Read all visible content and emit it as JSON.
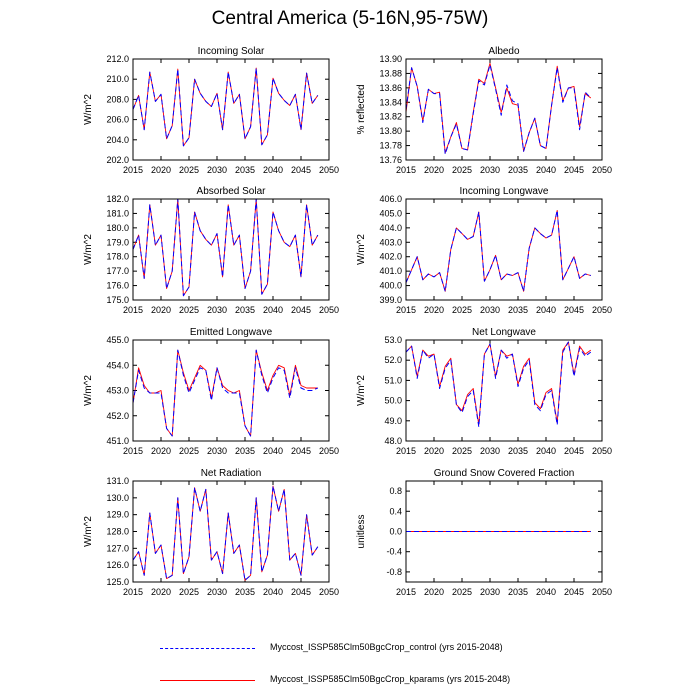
{
  "title": "Central America (5-16N,95-75W)",
  "colors": {
    "control": "#0000ff",
    "kparams": "#ff0000",
    "axis": "#000000"
  },
  "legend": [
    {
      "label": "Myccost_ISSP585Clm50BgcCrop_control (yrs 2015-2048)",
      "color": "#0000ff",
      "style": "dashed"
    },
    {
      "label": "Myccost_ISSP585Clm50BgcCrop_kparams (yrs 2015-2048)",
      "color": "#ff0000",
      "style": "solid"
    }
  ],
  "chart_data": [
    {
      "type": "line",
      "title": "Incoming Solar",
      "ylabel": "W/m^2",
      "xlim": [
        2015,
        2050
      ],
      "xticks": [
        "2015",
        "2020",
        "2025",
        "2030",
        "2035",
        "2040",
        "2045",
        "2050"
      ],
      "ylim": [
        202,
        212
      ],
      "yticks": [
        "202.0",
        "204.0",
        "206.0",
        "208.0",
        "210.0",
        "212.0"
      ],
      "x": [
        2015,
        2016,
        2017,
        2018,
        2019,
        2020,
        2021,
        2022,
        2023,
        2024,
        2025,
        2026,
        2027,
        2028,
        2029,
        2030,
        2031,
        2032,
        2033,
        2034,
        2035,
        2036,
        2037,
        2038,
        2039,
        2040,
        2041,
        2042,
        2043,
        2044,
        2045,
        2046,
        2047,
        2048
      ],
      "series": [
        {
          "name": "control",
          "values": [
            207.0,
            208.4,
            205.0,
            210.7,
            207.8,
            208.5,
            204.1,
            205.4,
            211.0,
            203.4,
            204.2,
            210.0,
            208.6,
            207.8,
            207.3,
            208.6,
            205.0,
            210.7,
            207.6,
            208.5,
            204.1,
            205.3,
            211.1,
            203.5,
            204.5,
            210.1,
            208.6,
            207.9,
            207.4,
            208.5,
            205.0,
            210.6,
            207.6,
            208.4
          ]
        },
        {
          "name": "kparams",
          "values": [
            207.0,
            208.4,
            205.0,
            210.7,
            207.8,
            208.5,
            204.1,
            205.4,
            211.0,
            203.4,
            204.2,
            210.0,
            208.6,
            207.8,
            207.3,
            208.6,
            205.0,
            210.7,
            207.6,
            208.5,
            204.1,
            205.3,
            211.1,
            203.5,
            204.5,
            210.1,
            208.6,
            207.9,
            207.4,
            208.5,
            205.0,
            210.6,
            207.6,
            208.4
          ]
        }
      ]
    },
    {
      "type": "line",
      "title": "Albedo",
      "ylabel": "% reflected",
      "xlim": [
        2015,
        2050
      ],
      "xticks": [
        "2015",
        "2020",
        "2025",
        "2030",
        "2035",
        "2040",
        "2045",
        "2050"
      ],
      "ylim": [
        13.76,
        13.9
      ],
      "yticks": [
        "13.76",
        "13.78",
        "13.80",
        "13.82",
        "13.84",
        "13.86",
        "13.88",
        "13.90"
      ],
      "x": [
        2015,
        2016,
        2017,
        2018,
        2019,
        2020,
        2021,
        2022,
        2023,
        2024,
        2025,
        2026,
        2027,
        2028,
        2029,
        2030,
        2031,
        2032,
        2033,
        2034,
        2035,
        2036,
        2037,
        2038,
        2039,
        2040,
        2041,
        2042,
        2043,
        2044,
        2045,
        2046,
        2047,
        2048
      ],
      "series": [
        {
          "name": "control",
          "values": [
            13.83,
            13.888,
            13.862,
            13.812,
            13.858,
            13.852,
            13.852,
            13.768,
            13.792,
            13.81,
            13.776,
            13.774,
            13.824,
            13.87,
            13.864,
            13.892,
            13.858,
            13.822,
            13.864,
            13.842,
            13.838,
            13.772,
            13.798,
            13.818,
            13.78,
            13.776,
            13.836,
            13.888,
            13.84,
            13.86,
            13.86,
            13.802,
            13.854,
            13.846
          ]
        },
        {
          "name": "kparams",
          "values": [
            13.826,
            13.888,
            13.862,
            13.814,
            13.858,
            13.852,
            13.854,
            13.77,
            13.792,
            13.812,
            13.776,
            13.774,
            13.826,
            13.872,
            13.866,
            13.894,
            13.86,
            13.826,
            13.86,
            13.838,
            13.836,
            13.772,
            13.798,
            13.818,
            13.78,
            13.776,
            13.836,
            13.89,
            13.842,
            13.86,
            13.862,
            13.806,
            13.852,
            13.846
          ]
        }
      ]
    },
    {
      "type": "line",
      "title": "Absorbed Solar",
      "ylabel": "W/m^2",
      "xlim": [
        2015,
        2050
      ],
      "xticks": [
        "2015",
        "2020",
        "2025",
        "2030",
        "2035",
        "2040",
        "2045",
        "2050"
      ],
      "ylim": [
        175,
        182
      ],
      "yticks": [
        "175.0",
        "176.0",
        "177.0",
        "178.0",
        "179.0",
        "180.0",
        "181.0",
        "182.0"
      ],
      "x": [
        2015,
        2016,
        2017,
        2018,
        2019,
        2020,
        2021,
        2022,
        2023,
        2024,
        2025,
        2026,
        2027,
        2028,
        2029,
        2030,
        2031,
        2032,
        2033,
        2034,
        2035,
        2036,
        2037,
        2038,
        2039,
        2040,
        2041,
        2042,
        2043,
        2044,
        2045,
        2046,
        2047,
        2048
      ],
      "series": [
        {
          "name": "control",
          "values": [
            178.5,
            179.5,
            176.5,
            181.6,
            178.8,
            179.5,
            175.8,
            177.0,
            182.0,
            175.3,
            175.9,
            181.1,
            179.8,
            179.2,
            178.8,
            179.6,
            176.6,
            181.6,
            178.8,
            179.5,
            175.8,
            177.0,
            182.0,
            175.4,
            176.1,
            181.1,
            179.8,
            179.0,
            178.7,
            179.5,
            176.6,
            181.6,
            178.8,
            179.5
          ]
        },
        {
          "name": "kparams",
          "values": [
            178.5,
            179.5,
            176.5,
            181.6,
            178.8,
            179.5,
            175.8,
            177.0,
            182.0,
            175.3,
            175.9,
            181.1,
            179.8,
            179.2,
            178.8,
            179.6,
            176.6,
            181.6,
            178.8,
            179.5,
            175.8,
            177.0,
            182.0,
            175.4,
            176.1,
            181.1,
            179.8,
            179.0,
            178.7,
            179.5,
            176.6,
            181.6,
            178.8,
            179.5
          ]
        }
      ]
    },
    {
      "type": "line",
      "title": "Incoming Longwave",
      "ylabel": "W/m^2",
      "xlim": [
        2015,
        2050
      ],
      "xticks": [
        "2015",
        "2020",
        "2025",
        "2030",
        "2035",
        "2040",
        "2045",
        "2050"
      ],
      "ylim": [
        399,
        406
      ],
      "yticks": [
        "399.0",
        "400.0",
        "401.0",
        "402.0",
        "403.0",
        "404.0",
        "405.0",
        "406.0"
      ],
      "x": [
        2015,
        2016,
        2017,
        2018,
        2019,
        2020,
        2021,
        2022,
        2023,
        2024,
        2025,
        2026,
        2027,
        2028,
        2029,
        2030,
        2031,
        2032,
        2033,
        2034,
        2035,
        2036,
        2037,
        2038,
        2039,
        2040,
        2041,
        2042,
        2043,
        2044,
        2045,
        2046,
        2047,
        2048
      ],
      "series": [
        {
          "name": "control",
          "values": [
            400.2,
            401.1,
            402.0,
            400.4,
            400.8,
            400.6,
            400.9,
            399.6,
            402.5,
            404.0,
            403.6,
            403.2,
            403.4,
            405.1,
            400.3,
            401.1,
            402.1,
            400.4,
            400.8,
            400.7,
            400.9,
            399.6,
            402.6,
            404.0,
            403.6,
            403.3,
            403.5,
            405.2,
            400.4,
            401.2,
            402.0,
            400.5,
            400.8,
            400.7
          ]
        },
        {
          "name": "kparams",
          "values": [
            400.2,
            401.1,
            402.0,
            400.4,
            400.8,
            400.6,
            400.9,
            399.6,
            402.5,
            404.0,
            403.6,
            403.2,
            403.4,
            405.1,
            400.3,
            401.1,
            402.1,
            400.4,
            400.8,
            400.7,
            400.9,
            399.6,
            402.6,
            404.0,
            403.6,
            403.3,
            403.5,
            405.2,
            400.4,
            401.2,
            402.0,
            400.5,
            400.8,
            400.7
          ]
        }
      ]
    },
    {
      "type": "line",
      "title": "Emitted Longwave",
      "ylabel": "W/m^2",
      "xlim": [
        2015,
        2050
      ],
      "xticks": [
        "2015",
        "2020",
        "2025",
        "2030",
        "2035",
        "2040",
        "2045",
        "2050"
      ],
      "ylim": [
        451,
        455
      ],
      "yticks": [
        "451.0",
        "452.0",
        "453.0",
        "454.0",
        "455.0"
      ],
      "x": [
        2015,
        2016,
        2017,
        2018,
        2019,
        2020,
        2021,
        2022,
        2023,
        2024,
        2025,
        2026,
        2027,
        2028,
        2029,
        2030,
        2031,
        2032,
        2033,
        2034,
        2035,
        2036,
        2037,
        2038,
        2039,
        2040,
        2041,
        2042,
        2043,
        2044,
        2045,
        2046,
        2047,
        2048
      ],
      "series": [
        {
          "name": "control",
          "values": [
            452.5,
            453.8,
            453.1,
            452.9,
            452.9,
            452.9,
            451.5,
            451.2,
            454.6,
            453.6,
            452.9,
            453.4,
            453.9,
            453.8,
            452.6,
            453.9,
            453.1,
            452.9,
            452.9,
            452.9,
            451.6,
            451.2,
            454.6,
            453.6,
            452.9,
            453.5,
            453.9,
            453.8,
            452.7,
            453.9,
            453.1,
            453.0,
            453.0,
            453.1
          ]
        },
        {
          "name": "kparams",
          "values": [
            452.5,
            453.9,
            453.2,
            452.9,
            452.9,
            453.0,
            451.5,
            451.2,
            454.6,
            453.7,
            453.0,
            453.5,
            454.0,
            453.8,
            452.7,
            453.9,
            453.2,
            453.0,
            452.9,
            453.0,
            451.6,
            451.2,
            454.6,
            453.7,
            453.0,
            453.6,
            454.0,
            453.9,
            452.8,
            454.0,
            453.2,
            453.1,
            453.1,
            453.1
          ]
        }
      ]
    },
    {
      "type": "line",
      "title": "Net Longwave",
      "ylabel": "W/m^2",
      "xlim": [
        2015,
        2050
      ],
      "xticks": [
        "2015",
        "2020",
        "2025",
        "2030",
        "2035",
        "2040",
        "2045",
        "2050"
      ],
      "ylim": [
        48,
        53
      ],
      "yticks": [
        "48.0",
        "49.0",
        "50.0",
        "51.0",
        "52.0",
        "53.0"
      ],
      "x": [
        2015,
        2016,
        2017,
        2018,
        2019,
        2020,
        2021,
        2022,
        2023,
        2024,
        2025,
        2026,
        2027,
        2028,
        2029,
        2030,
        2031,
        2032,
        2033,
        2034,
        2035,
        2036,
        2037,
        2038,
        2039,
        2040,
        2041,
        2042,
        2043,
        2044,
        2045,
        2046,
        2047,
        2048
      ],
      "series": [
        {
          "name": "control",
          "values": [
            52.4,
            52.7,
            51.1,
            52.5,
            52.1,
            52.3,
            50.6,
            51.6,
            52.0,
            49.8,
            49.4,
            50.2,
            50.5,
            48.7,
            52.3,
            52.8,
            51.1,
            52.5,
            52.1,
            52.3,
            50.7,
            51.6,
            52.0,
            49.8,
            49.5,
            50.3,
            50.5,
            48.8,
            52.4,
            52.9,
            51.2,
            52.6,
            52.2,
            52.4
          ]
        },
        {
          "name": "kparams",
          "values": [
            52.4,
            52.7,
            51.2,
            52.5,
            52.2,
            52.3,
            50.7,
            51.7,
            52.1,
            49.8,
            49.5,
            50.3,
            50.6,
            48.8,
            52.3,
            52.8,
            51.2,
            52.5,
            52.2,
            52.3,
            50.8,
            51.7,
            52.1,
            49.9,
            49.6,
            50.4,
            50.6,
            48.9,
            52.5,
            52.9,
            51.3,
            52.7,
            52.3,
            52.5
          ]
        }
      ]
    },
    {
      "type": "line",
      "title": "Net Radiation",
      "ylabel": "W/m^2",
      "xlim": [
        2015,
        2050
      ],
      "xticks": [
        "2015",
        "2020",
        "2025",
        "2030",
        "2035",
        "2040",
        "2045",
        "2050"
      ],
      "ylim": [
        125,
        131
      ],
      "yticks": [
        "125.0",
        "126.0",
        "127.0",
        "128.0",
        "129.0",
        "130.0",
        "131.0"
      ],
      "x": [
        2015,
        2016,
        2017,
        2018,
        2019,
        2020,
        2021,
        2022,
        2023,
        2024,
        2025,
        2026,
        2027,
        2028,
        2029,
        2030,
        2031,
        2032,
        2033,
        2034,
        2035,
        2036,
        2037,
        2038,
        2039,
        2040,
        2041,
        2042,
        2043,
        2044,
        2045,
        2046,
        2047,
        2048
      ],
      "series": [
        {
          "name": "control",
          "values": [
            126.3,
            126.8,
            125.4,
            129.1,
            126.7,
            127.2,
            125.2,
            125.4,
            130.0,
            125.5,
            126.5,
            130.6,
            129.2,
            130.5,
            126.3,
            126.8,
            125.5,
            129.1,
            126.7,
            127.2,
            125.1,
            125.4,
            130.0,
            125.6,
            126.6,
            130.7,
            129.2,
            130.5,
            126.3,
            126.7,
            125.4,
            129.0,
            126.6,
            127.1
          ]
        },
        {
          "name": "kparams",
          "values": [
            126.3,
            126.8,
            125.4,
            129.1,
            126.7,
            127.2,
            125.2,
            125.4,
            130.0,
            125.5,
            126.5,
            130.6,
            129.2,
            130.5,
            126.3,
            126.8,
            125.5,
            129.1,
            126.7,
            127.2,
            125.1,
            125.4,
            130.0,
            125.6,
            126.6,
            130.7,
            129.2,
            130.5,
            126.3,
            126.7,
            125.4,
            129.0,
            126.6,
            127.1
          ]
        }
      ]
    },
    {
      "type": "line",
      "title": "Ground Snow Covered Fraction",
      "ylabel": "unitless",
      "xlim": [
        2015,
        2050
      ],
      "xticks": [
        "2015",
        "2020",
        "2025",
        "2030",
        "2035",
        "2040",
        "2045",
        "2050"
      ],
      "ylim": [
        -1.0,
        1.0
      ],
      "yticks": [
        "-0.8",
        "-0.4",
        "0.0",
        "0.4",
        "0.8"
      ],
      "x": [
        2015,
        2016,
        2017,
        2018,
        2019,
        2020,
        2021,
        2022,
        2023,
        2024,
        2025,
        2026,
        2027,
        2028,
        2029,
        2030,
        2031,
        2032,
        2033,
        2034,
        2035,
        2036,
        2037,
        2038,
        2039,
        2040,
        2041,
        2042,
        2043,
        2044,
        2045,
        2046,
        2047,
        2048
      ],
      "series": [
        {
          "name": "control",
          "values": [
            0,
            0,
            0,
            0,
            0,
            0,
            0,
            0,
            0,
            0,
            0,
            0,
            0,
            0,
            0,
            0,
            0,
            0,
            0,
            0,
            0,
            0,
            0,
            0,
            0,
            0,
            0,
            0,
            0,
            0,
            0,
            0,
            0,
            0
          ]
        },
        {
          "name": "kparams",
          "values": [
            0,
            0,
            0,
            0,
            0,
            0,
            0,
            0,
            0,
            0,
            0,
            0,
            0,
            0,
            0,
            0,
            0,
            0,
            0,
            0,
            0,
            0,
            0,
            0,
            0,
            0,
            0,
            0,
            0,
            0,
            0,
            0,
            0,
            0
          ]
        }
      ]
    }
  ]
}
